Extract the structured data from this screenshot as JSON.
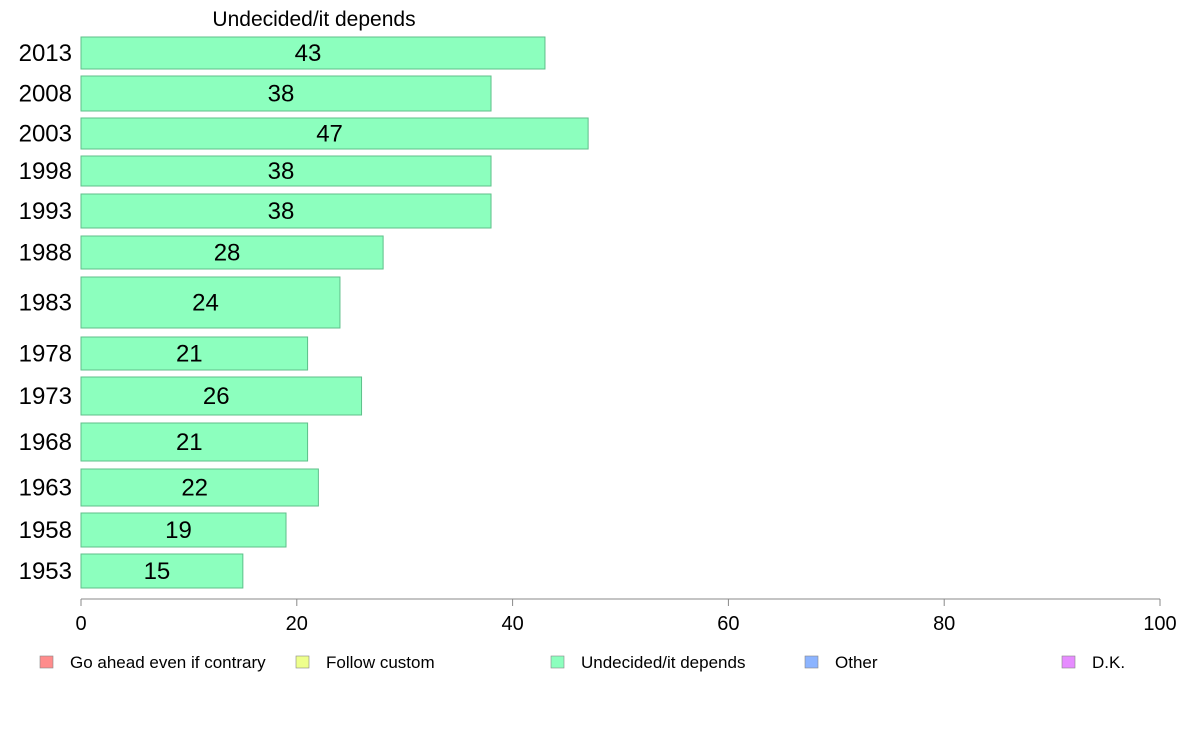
{
  "chart_data": {
    "type": "bar",
    "orientation": "horizontal",
    "title": "Undecided/it depends",
    "categories": [
      "2013",
      "2008",
      "2003",
      "1998",
      "1993",
      "1988",
      "1983",
      "1978",
      "1973",
      "1968",
      "1963",
      "1958",
      "1953"
    ],
    "values": [
      43,
      38,
      47,
      38,
      38,
      28,
      24,
      21,
      26,
      21,
      22,
      19,
      15
    ],
    "xlim": [
      0,
      100
    ],
    "xticks": [
      0,
      20,
      40,
      60,
      80,
      100
    ],
    "grid": false,
    "bar_color": "#8cffbe",
    "bar_edge_color": "#5fbf8a",
    "legend_position": "bottom",
    "legend": [
      {
        "label": "Go ahead even if contrary",
        "color": "#ff8c8c"
      },
      {
        "label": "Follow custom",
        "color": "#eeff8c"
      },
      {
        "label": "Undecided/it depends",
        "color": "#8cffbe"
      },
      {
        "label": "Other",
        "color": "#8cb4ff"
      },
      {
        "label": "D.K.",
        "color": "#e68cff"
      }
    ]
  }
}
